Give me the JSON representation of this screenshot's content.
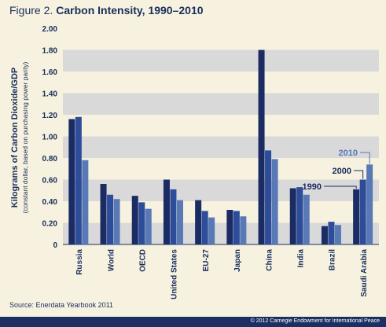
{
  "header": {
    "figure_label": "Figure 2.",
    "title": "Carbon Intensity, 1990–2010"
  },
  "source": "Source: Enerdata Yearbook 2011",
  "footer": "© 2012 Carnegie Endowment for International Peace",
  "chart_data": {
    "type": "bar",
    "title": "Carbon Intensity, 1990–2010",
    "ylabel": "Kilograms of Carbon Dioxide/GDP",
    "ylabel_sub": "(constant dollar, based on purchasing power parity)",
    "xlabel": "",
    "ylim": [
      0,
      2.0
    ],
    "yticks": [
      "0",
      "0.20",
      "0.40",
      "0.60",
      "0.80",
      "1.00",
      "1.20",
      "1.40",
      "1.60",
      "1.80",
      "2.00"
    ],
    "grid": "alternating horizontal bands",
    "categories": [
      "Russia",
      "World",
      "OECD",
      "United States",
      "EU-27",
      "Japan",
      "China",
      "India",
      "Brazil",
      "Saudi Arabia"
    ],
    "series": [
      {
        "name": "1990",
        "color": "#1b2b63",
        "values": [
          1.16,
          0.56,
          0.45,
          0.6,
          0.41,
          0.32,
          1.8,
          0.52,
          0.17,
          0.51
        ]
      },
      {
        "name": "2000",
        "color": "#2d4c9a",
        "values": [
          1.18,
          0.46,
          0.39,
          0.51,
          0.31,
          0.31,
          0.87,
          0.53,
          0.21,
          0.6
        ]
      },
      {
        "name": "2010",
        "color": "#5878b6",
        "values": [
          0.78,
          0.42,
          0.33,
          0.41,
          0.25,
          0.26,
          0.79,
          0.46,
          0.18,
          0.74
        ]
      }
    ],
    "annotations": [
      {
        "label": "1990",
        "category": "Saudi Arabia",
        "series": "1990",
        "color": "#1b2b63"
      },
      {
        "label": "2000",
        "category": "Saudi Arabia",
        "series": "2000",
        "color": "#1b2b63"
      },
      {
        "label": "2010",
        "category": "Saudi Arabia",
        "series": "2010",
        "color": "#5878b6"
      }
    ]
  }
}
